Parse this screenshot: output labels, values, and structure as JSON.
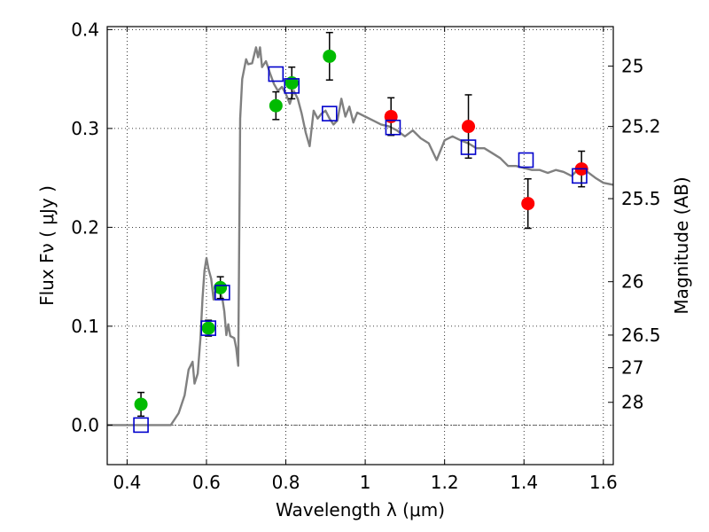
{
  "chart_data": {
    "type": "scatter",
    "xlabel": "Wavelength  λ (μm)",
    "ylabel": "Flux  Fν  ( μJy )",
    "y2label": "Magnitude (AB)",
    "xlim": [
      0.35,
      1.625
    ],
    "ylim": [
      -0.04,
      0.403
    ],
    "x_ticks": [
      0.4,
      0.6,
      0.8,
      1.0,
      1.2,
      1.4,
      1.6
    ],
    "x_tick_labels": [
      "0.4",
      "0.6",
      "0.8",
      "1",
      "1.2",
      "1.4",
      "1.6"
    ],
    "y_ticks": [
      0.0,
      0.1,
      0.2,
      0.3,
      0.4
    ],
    "y_tick_labels": [
      "0.0",
      "0.1",
      "0.2",
      "0.3",
      "0.4"
    ],
    "y2_ticks": [
      {
        "label": "25",
        "flux": 0.363
      },
      {
        "label": "25.2",
        "flux": 0.302
      },
      {
        "label": "25.5",
        "flux": 0.229
      },
      {
        "label": "26",
        "flux": 0.145
      },
      {
        "label": "26.5",
        "flux": 0.091
      },
      {
        "label": "27",
        "flux": 0.058
      },
      {
        "label": "28",
        "flux": 0.023
      }
    ],
    "grid": true,
    "zero_line": true,
    "colors": {
      "model_line": "#808080",
      "green_points": "#00bb00",
      "red_points": "#ff0000",
      "model_boxes": "#0000cc",
      "errorbar": "#000000"
    },
    "series": [
      {
        "kind": "line",
        "points": [
          [
            0.35,
            0.0
          ],
          [
            0.5,
            0.0
          ],
          [
            0.51,
            0.0
          ],
          [
            0.53,
            0.012
          ],
          [
            0.545,
            0.03
          ],
          [
            0.555,
            0.056
          ],
          [
            0.565,
            0.064
          ],
          [
            0.57,
            0.042
          ],
          [
            0.578,
            0.052
          ],
          [
            0.585,
            0.088
          ],
          [
            0.59,
            0.128
          ],
          [
            0.595,
            0.156
          ],
          [
            0.6,
            0.169
          ],
          [
            0.605,
            0.158
          ],
          [
            0.612,
            0.148
          ],
          [
            0.618,
            0.127
          ],
          [
            0.625,
            0.142
          ],
          [
            0.632,
            0.136
          ],
          [
            0.64,
            0.128
          ],
          [
            0.645,
            0.115
          ],
          [
            0.65,
            0.091
          ],
          [
            0.655,
            0.102
          ],
          [
            0.66,
            0.09
          ],
          [
            0.67,
            0.088
          ],
          [
            0.675,
            0.078
          ],
          [
            0.68,
            0.06
          ],
          [
            0.685,
            0.31
          ],
          [
            0.69,
            0.35
          ],
          [
            0.7,
            0.37
          ],
          [
            0.705,
            0.365
          ],
          [
            0.715,
            0.366
          ],
          [
            0.725,
            0.382
          ],
          [
            0.73,
            0.372
          ],
          [
            0.735,
            0.382
          ],
          [
            0.74,
            0.362
          ],
          [
            0.75,
            0.368
          ],
          [
            0.76,
            0.356
          ],
          [
            0.77,
            0.345
          ],
          [
            0.78,
            0.338
          ],
          [
            0.79,
            0.342
          ],
          [
            0.8,
            0.335
          ],
          [
            0.81,
            0.325
          ],
          [
            0.82,
            0.338
          ],
          [
            0.83,
            0.33
          ],
          [
            0.84,
            0.315
          ],
          [
            0.85,
            0.296
          ],
          [
            0.86,
            0.282
          ],
          [
            0.87,
            0.318
          ],
          [
            0.88,
            0.31
          ],
          [
            0.89,
            0.315
          ],
          [
            0.9,
            0.318
          ],
          [
            0.91,
            0.31
          ],
          [
            0.92,
            0.304
          ],
          [
            0.93,
            0.308
          ],
          [
            0.94,
            0.33
          ],
          [
            0.95,
            0.312
          ],
          [
            0.96,
            0.322
          ],
          [
            0.97,
            0.306
          ],
          [
            0.98,
            0.316
          ],
          [
            1.0,
            0.312
          ],
          [
            1.02,
            0.308
          ],
          [
            1.04,
            0.304
          ],
          [
            1.06,
            0.302
          ],
          [
            1.08,
            0.298
          ],
          [
            1.1,
            0.292
          ],
          [
            1.12,
            0.298
          ],
          [
            1.14,
            0.29
          ],
          [
            1.16,
            0.285
          ],
          [
            1.18,
            0.268
          ],
          [
            1.2,
            0.288
          ],
          [
            1.22,
            0.292
          ],
          [
            1.24,
            0.288
          ],
          [
            1.26,
            0.285
          ],
          [
            1.28,
            0.28
          ],
          [
            1.3,
            0.28
          ],
          [
            1.32,
            0.275
          ],
          [
            1.34,
            0.27
          ],
          [
            1.36,
            0.262
          ],
          [
            1.38,
            0.262
          ],
          [
            1.4,
            0.26
          ],
          [
            1.42,
            0.258
          ],
          [
            1.44,
            0.258
          ],
          [
            1.46,
            0.255
          ],
          [
            1.48,
            0.258
          ],
          [
            1.5,
            0.256
          ],
          [
            1.52,
            0.252
          ],
          [
            1.54,
            0.26
          ],
          [
            1.56,
            0.256
          ],
          [
            1.58,
            0.25
          ],
          [
            1.6,
            0.245
          ],
          [
            1.625,
            0.243
          ]
        ]
      },
      {
        "kind": "points_with_errorbars",
        "marker": "circle",
        "color": "green",
        "points": [
          {
            "x": 0.435,
            "y": 0.021,
            "err": 0.012
          },
          {
            "x": 0.605,
            "y": 0.098,
            "err": 0.008
          },
          {
            "x": 0.635,
            "y": 0.139,
            "err": 0.011
          },
          {
            "x": 0.775,
            "y": 0.323,
            "err": 0.014
          },
          {
            "x": 0.815,
            "y": 0.346,
            "err": 0.016
          },
          {
            "x": 0.91,
            "y": 0.373,
            "err": 0.024
          }
        ]
      },
      {
        "kind": "points_with_errorbars",
        "marker": "circle",
        "color": "red",
        "points": [
          {
            "x": 1.065,
            "y": 0.312,
            "err": 0.019
          },
          {
            "x": 1.26,
            "y": 0.302,
            "err": 0.032
          },
          {
            "x": 1.41,
            "y": 0.224,
            "err": 0.025
          },
          {
            "x": 1.545,
            "y": 0.259,
            "err": 0.018
          }
        ]
      },
      {
        "kind": "points",
        "marker": "open-square",
        "color": "blue",
        "points": [
          {
            "x": 0.435,
            "y": 0.0
          },
          {
            "x": 0.605,
            "y": 0.098
          },
          {
            "x": 0.64,
            "y": 0.134
          },
          {
            "x": 0.775,
            "y": 0.355
          },
          {
            "x": 0.815,
            "y": 0.343
          },
          {
            "x": 0.91,
            "y": 0.315
          },
          {
            "x": 1.07,
            "y": 0.301
          },
          {
            "x": 1.26,
            "y": 0.281
          },
          {
            "x": 1.405,
            "y": 0.268
          },
          {
            "x": 1.54,
            "y": 0.252
          }
        ]
      }
    ]
  }
}
